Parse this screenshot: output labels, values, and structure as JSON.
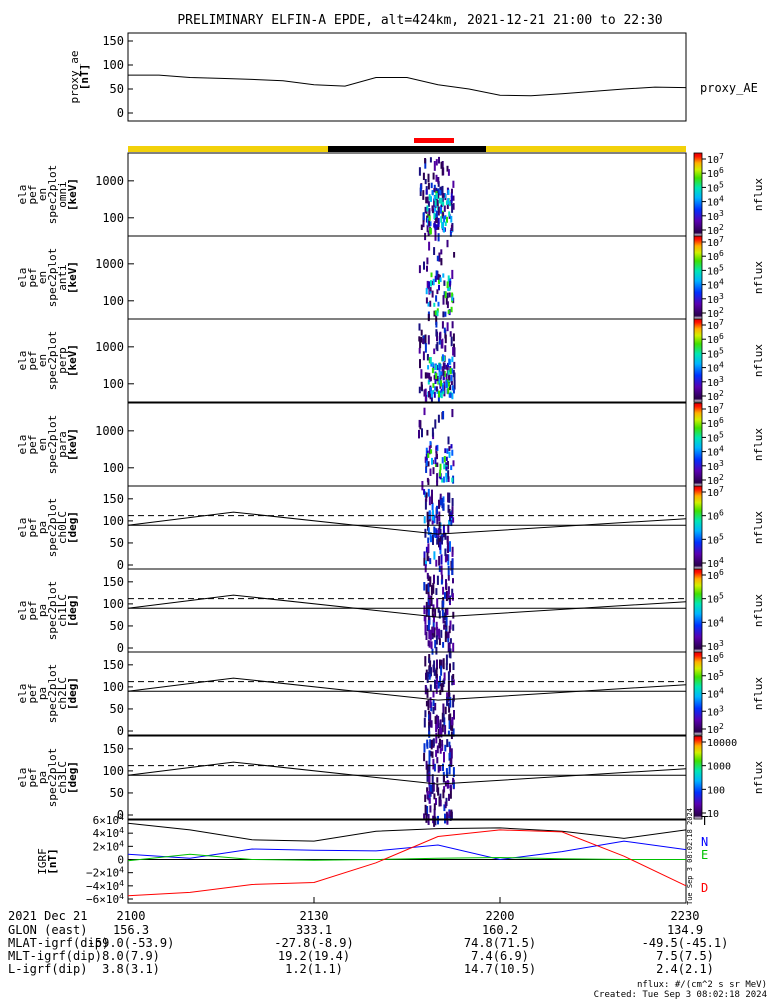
{
  "title": "PRELIMINARY ELFIN-A EPDE, alt=424km, 2021-12-21 21:00 to 22:30",
  "colors": {
    "orbit_sunlit": "#f2d10a",
    "orbit_shadow": "#000000",
    "science_zone": "#ff0000",
    "bx": "#0000ff",
    "by": "#00c000",
    "bz": "#ff0000",
    "bmag": "#000000"
  },
  "chart_data": [
    {
      "type": "line",
      "name": "proxy_ae",
      "ylabel": "proxy_ae\n[nT]",
      "yticks": [
        "150",
        "100",
        "50",
        "0"
      ],
      "ylim": [
        0,
        160
      ],
      "legend": "proxy_AE",
      "x_minutes": [
        0,
        5,
        10,
        15,
        20,
        25,
        30,
        35,
        40,
        45,
        50,
        55,
        60,
        65,
        70,
        75,
        80,
        85,
        90
      ],
      "values": [
        79,
        79,
        74,
        72,
        70,
        67,
        59,
        56,
        74,
        74,
        59,
        50,
        37,
        36,
        40,
        45,
        50,
        54,
        53
      ]
    },
    {
      "type": "heatmap",
      "name": "omni",
      "ylabel": "ela\npef\nen\nspec2plot\nomni\n[keV]",
      "yticks": [
        "1000",
        "100"
      ],
      "yscale": "log",
      "colorbar": {
        "label": "nflux",
        "ticks": [
          "10^7",
          "10^6",
          "10^5",
          "10^4",
          "10^3",
          "10^2"
        ]
      }
    },
    {
      "type": "heatmap",
      "name": "anti",
      "ylabel": "ela\npef\nen\nspec2plot\nanti\n[keV]",
      "yticks": [
        "1000",
        "100"
      ],
      "yscale": "log",
      "colorbar": {
        "label": "nflux",
        "ticks": [
          "10^7",
          "10^6",
          "10^5",
          "10^4",
          "10^3",
          "10^2"
        ]
      }
    },
    {
      "type": "heatmap",
      "name": "perp",
      "ylabel": "ela\npef\nen\nspec2plot\nperp\n[keV]",
      "yticks": [
        "1000",
        "100"
      ],
      "yscale": "log",
      "colorbar": {
        "label": "nflux",
        "ticks": [
          "10^7",
          "10^6",
          "10^5",
          "10^4",
          "10^3",
          "10^2"
        ]
      }
    },
    {
      "type": "heatmap",
      "name": "para",
      "ylabel": "ela\npef\nen\nspec2plot\npara\n[keV]",
      "yticks": [
        "1000",
        "100"
      ],
      "yscale": "log",
      "colorbar": {
        "label": "nflux",
        "ticks": [
          "10^7",
          "10^6",
          "10^5",
          "10^4",
          "10^3",
          "10^2"
        ]
      }
    },
    {
      "type": "heatmap",
      "name": "ch0LC",
      "ylabel": "ela\npef\npa\nspec2plot\nch0LC\n[deg]",
      "yticks": [
        "150",
        "100",
        "50",
        "0"
      ],
      "ylim": [
        0,
        180
      ],
      "colorbar": {
        "label": "nflux",
        "ticks": [
          "10^7",
          "10^6",
          "10^5",
          "10^4"
        ]
      }
    },
    {
      "type": "heatmap",
      "name": "ch1LC",
      "ylabel": "ela\npef\npa\nspec2plot\nch1LC\n[deg]",
      "yticks": [
        "150",
        "100",
        "50",
        "0"
      ],
      "ylim": [
        0,
        180
      ],
      "colorbar": {
        "label": "nflux",
        "ticks": [
          "10^6",
          "10^5",
          "10^4",
          "10^3"
        ]
      }
    },
    {
      "type": "heatmap",
      "name": "ch2LC",
      "ylabel": "ela\npef\npa\nspec2plot\nch2LC\n[deg]",
      "yticks": [
        "150",
        "100",
        "50",
        "0"
      ],
      "ylim": [
        0,
        180
      ],
      "colorbar": {
        "label": "nflux",
        "ticks": [
          "10^6",
          "10^5",
          "10^4",
          "10^3",
          "10^2"
        ]
      }
    },
    {
      "type": "heatmap",
      "name": "ch3LC",
      "ylabel": "ela\npef\npa\nspec2plot\nch3LC\n[deg]",
      "yticks": [
        "150",
        "100",
        "50",
        "0"
      ],
      "ylim": [
        0,
        180
      ],
      "colorbar": {
        "label": "nflux",
        "ticks": [
          "10000",
          "1000",
          "100",
          "10"
        ]
      }
    },
    {
      "type": "line",
      "name": "IGRF",
      "ylabel": "IGRF\n[nT]",
      "yticks": [
        "6×10^4",
        "4×10^4",
        "2×10^4",
        "0",
        "−2×10^4",
        "−4×10^4",
        "−6×10^4"
      ],
      "ylim": [
        -60000,
        60000
      ],
      "legend": [
        "T",
        "N",
        "E",
        "D"
      ],
      "x_minutes": [
        0,
        10,
        20,
        30,
        40,
        50,
        60,
        70,
        80,
        90
      ],
      "series": [
        {
          "name": "T",
          "values": [
            55000,
            45000,
            30000,
            28000,
            43000,
            47000,
            48000,
            43000,
            32000,
            45000
          ]
        },
        {
          "name": "N",
          "values": [
            8000,
            2000,
            16000,
            14000,
            13000,
            22000,
            0,
            12000,
            28000,
            15000
          ]
        },
        {
          "name": "E",
          "values": [
            -2000,
            8000,
            0,
            -1000,
            0,
            2000,
            3000,
            1000,
            0,
            0
          ]
        },
        {
          "name": "D",
          "values": [
            -55000,
            -50000,
            -38000,
            -35000,
            -5000,
            35000,
            45000,
            42000,
            5000,
            -40000
          ]
        }
      ]
    }
  ],
  "footer": {
    "rows": [
      [
        "2021 Dec 21",
        "2100",
        "2130",
        "2200",
        "2230"
      ],
      [
        "GLON (east)",
        "156.3",
        "333.1",
        "160.2",
        "134.9"
      ],
      [
        "MLAT-igrf(dip)",
        "-59.0(-53.9)",
        "-27.8(-8.9)",
        "74.8(71.5)",
        "-49.5(-45.1)"
      ],
      [
        "MLT-igrf(dip)",
        "8.0(7.9)",
        "19.2(19.4)",
        "7.4(6.9)",
        "7.5(7.5)"
      ],
      [
        "L-igrf(dip)",
        "3.8(3.1)",
        "1.2(1.1)",
        "14.7(10.5)",
        "2.4(2.1)"
      ]
    ],
    "units_note": "nflux: #/(cm^2 s sr MeV)",
    "created": "Created: Tue Sep  3 08:02:18 2024",
    "side_stamp": "Tue Sep  3 08:02:18 2024"
  }
}
